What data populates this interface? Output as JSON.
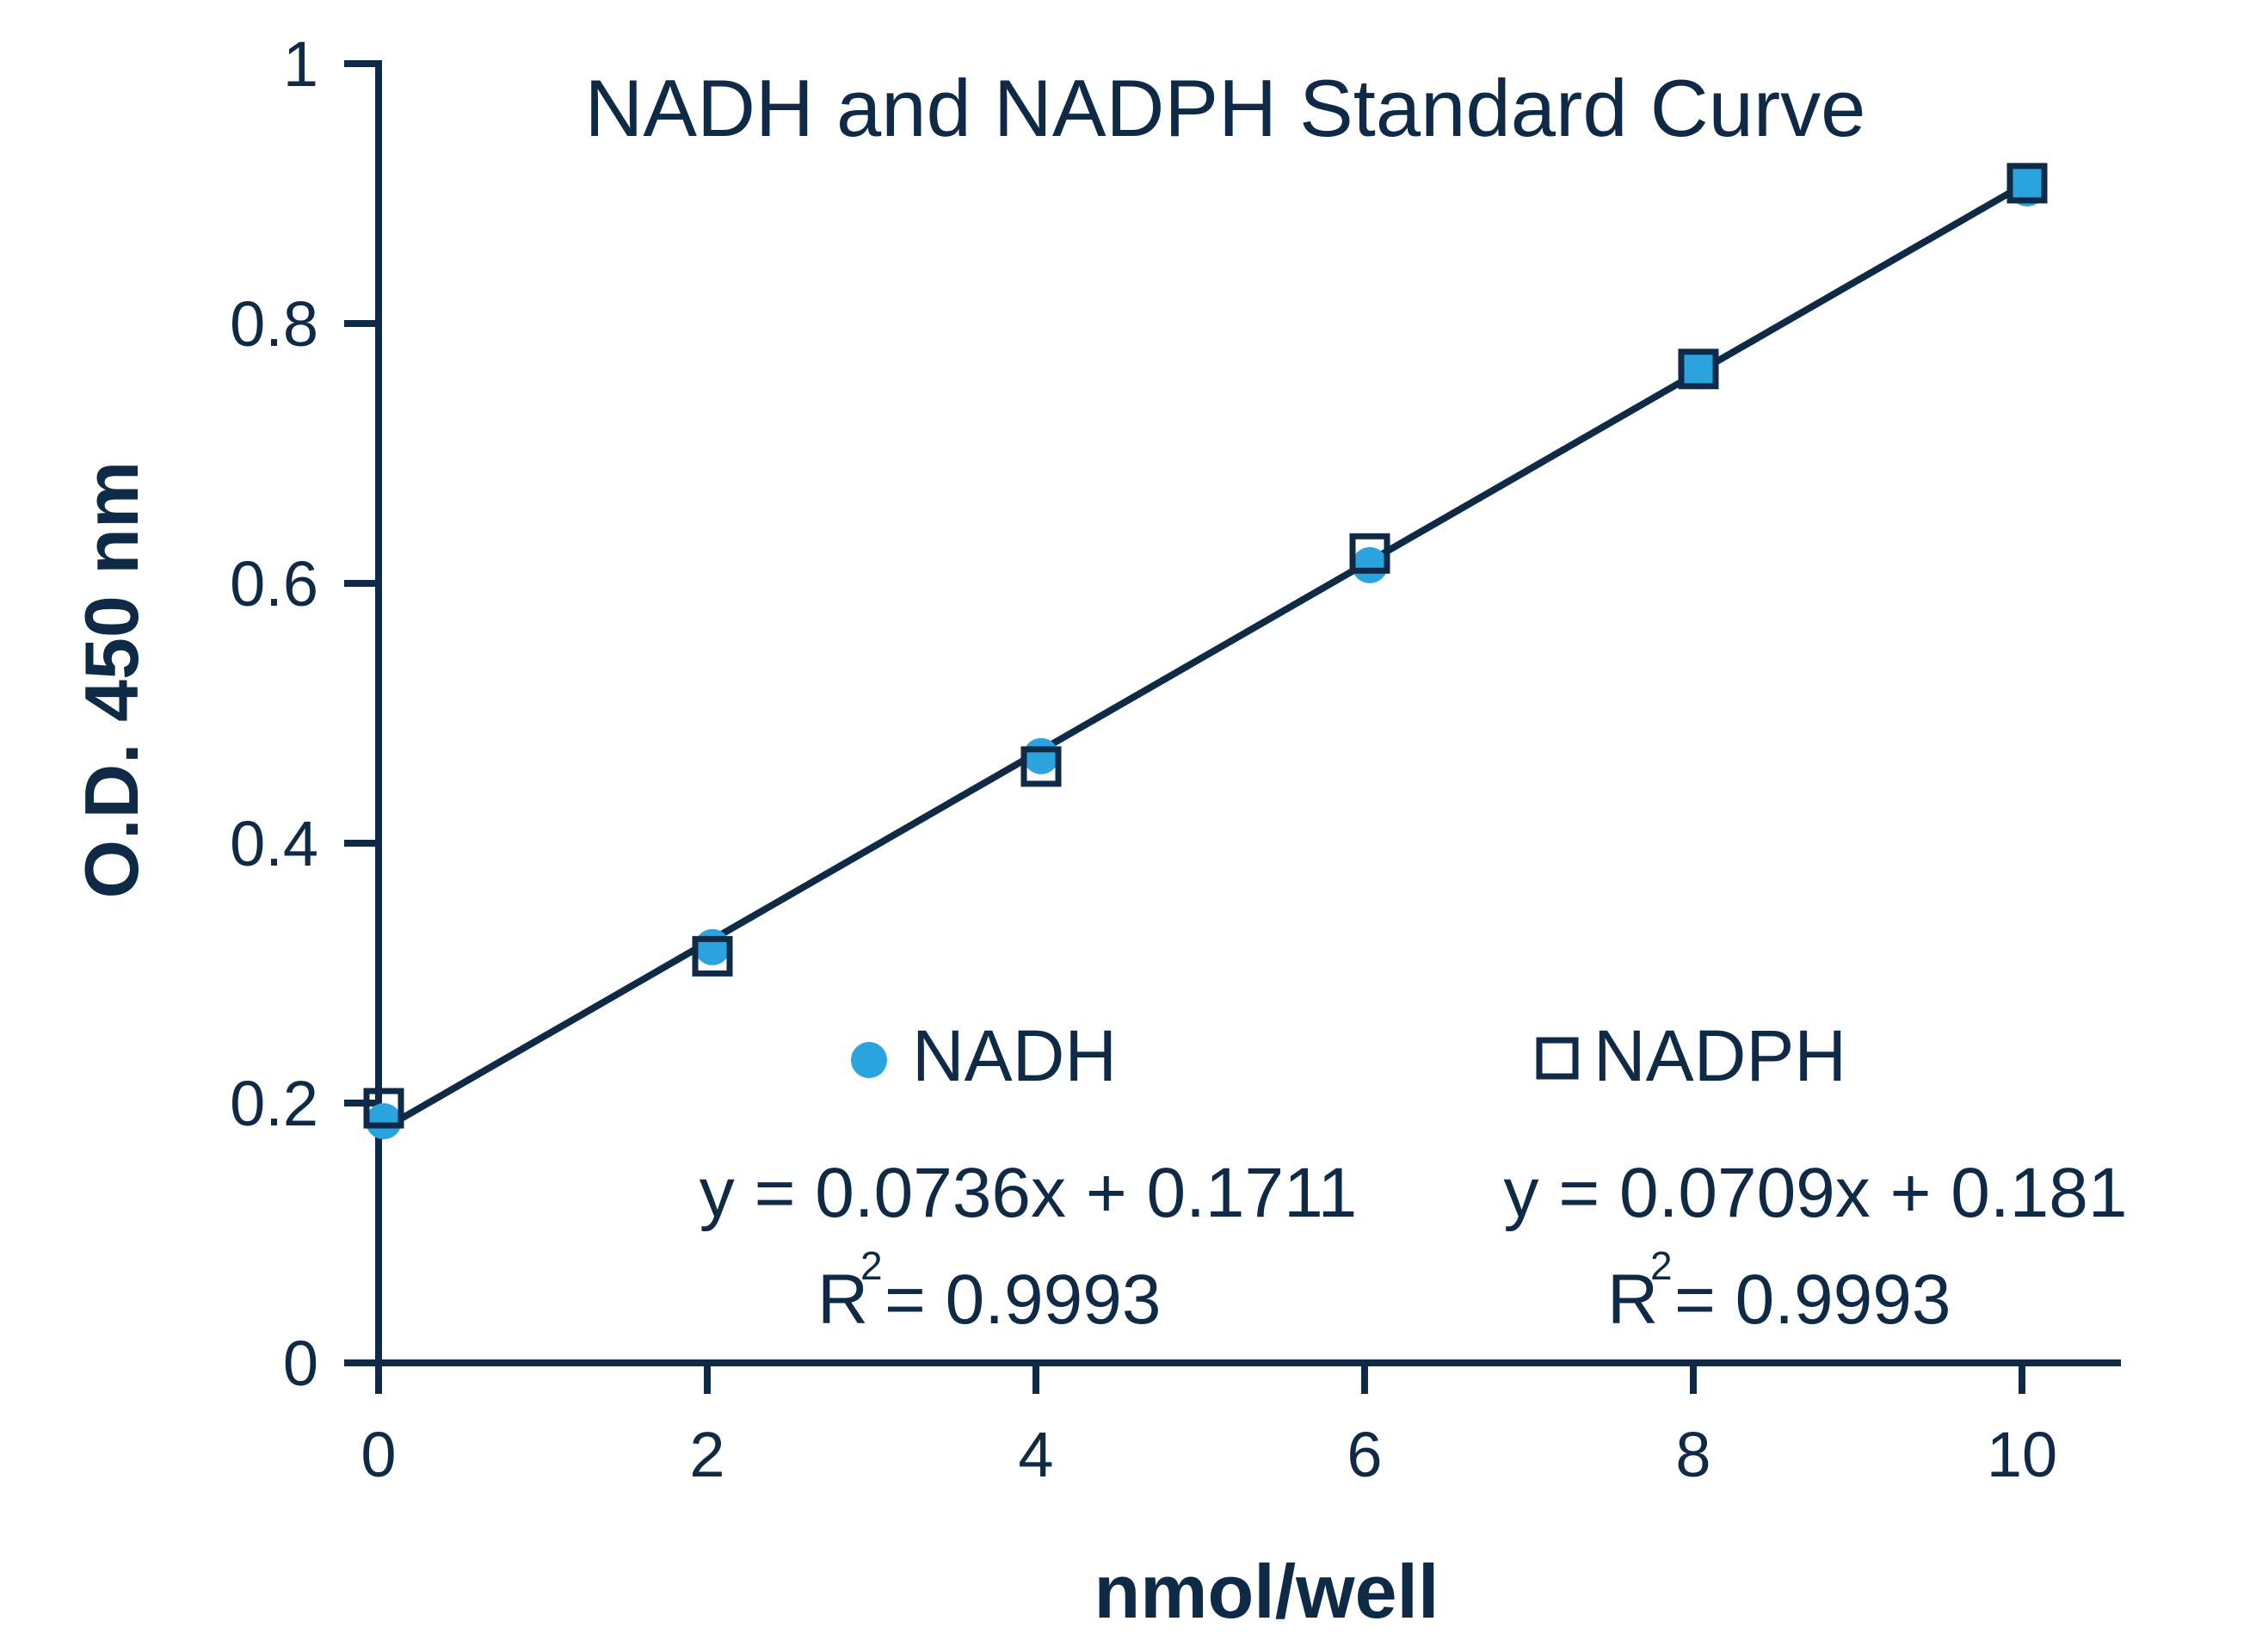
{
  "chart_data": {
    "type": "scatter",
    "title": "NADH and NADPH Standard Curve",
    "xlabel": "nmol/well",
    "ylabel": "O.D. 450 nm",
    "xlim": [
      0,
      10.5
    ],
    "ylim": [
      0,
      1
    ],
    "xticks": [
      0,
      2,
      4,
      6,
      8,
      10
    ],
    "yticks": [
      0,
      0.2,
      0.4,
      0.6,
      0.8,
      1
    ],
    "x_tick_labels": [
      "0",
      "2",
      "4",
      "6",
      "8",
      "10"
    ],
    "y_tick_labels": [
      "0",
      "0.2",
      "0.4",
      "0.6",
      "0.8",
      "1"
    ],
    "grid": false,
    "legend_position": "center",
    "series": [
      {
        "name": "NADH",
        "marker": "circle",
        "color": "#2ba3df",
        "x": [
          0,
          2,
          4,
          6,
          8,
          10
        ],
        "y": [
          0.186,
          0.32,
          0.467,
          0.614,
          0.766,
          0.904
        ],
        "equation": "y = 0.0736x + 0.1711",
        "r2_label": "R",
        "r2_sup": "2",
        "r2_value": "= 0.9993"
      },
      {
        "name": "NADPH",
        "marker": "square",
        "color": "#2ba3df",
        "x": [
          0,
          2,
          4,
          6,
          8,
          10
        ],
        "y": [
          0.196,
          0.313,
          0.459,
          0.623,
          0.765,
          0.908
        ],
        "equation": "y = 0.0709x + 0.181",
        "r2_label": "R",
        "r2_sup": "2",
        "r2_value": "= 0.9993"
      }
    ],
    "trendline": {
      "x": [
        0,
        10
      ],
      "y": [
        0.178,
        0.906
      ]
    },
    "colors": {
      "axis": "#0e2a47",
      "marker_fill": "#2ba3df",
      "square_fill_hollow": "#ffffff"
    }
  }
}
